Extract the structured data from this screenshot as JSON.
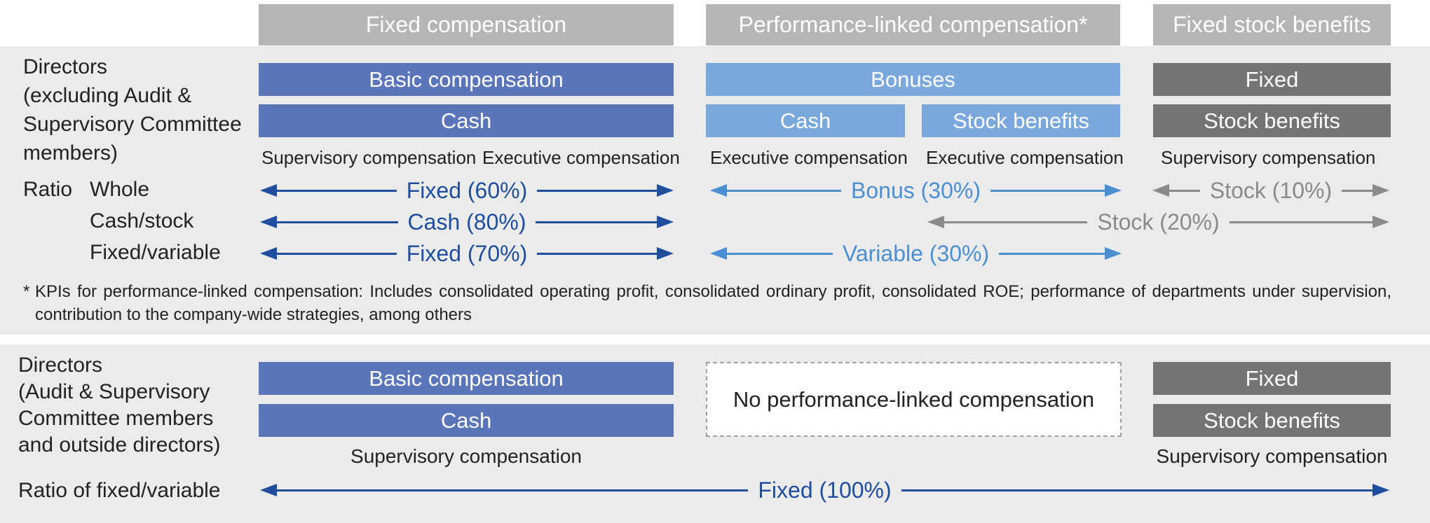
{
  "headers": {
    "fixed": "Fixed compensation",
    "performance": "Performance-linked compensation*",
    "stock": "Fixed stock benefits"
  },
  "section1": {
    "label": "Directors\n(excluding Audit &\nSupervisory Committee\nmembers)",
    "basic_compensation": "Basic compensation",
    "cash": "Cash",
    "bonuses": "Bonuses",
    "bonus_cash": "Cash",
    "bonus_stock": "Stock benefits",
    "fixed": "Fixed",
    "stock_benefits": "Stock benefits",
    "sub_supervisory": "Supervisory compensation",
    "sub_executive": "Executive compensation",
    "sub_bonus_cash": "Executive compensation",
    "sub_bonus_stock": "Executive compensation",
    "sub_stock": "Supervisory compensation",
    "ratio_label": "Ratio",
    "row_whole": "Whole",
    "row_cashstock": "Cash/stock",
    "row_fixedvar": "Fixed/variable",
    "arrow_fixed60": "Fixed (60%)",
    "arrow_bonus30": "Bonus (30%)",
    "arrow_stock10": "Stock (10%)",
    "arrow_cash80": "Cash (80%)",
    "arrow_stock20": "Stock (20%)",
    "arrow_fixed70": "Fixed (70%)",
    "arrow_variable30": "Variable (30%)",
    "footnote_mark": "*",
    "footnote": "KPIs for performance-linked compensation: Includes consolidated operating profit, consolidated ordinary profit, consolidated ROE; performance of departments under supervision, contribution to the company-wide strategies, among others"
  },
  "section2": {
    "label": "Directors\n(Audit & Supervisory\nCommittee members\nand outside directors)",
    "basic_compensation": "Basic compensation",
    "cash": "Cash",
    "no_performance": "No performance-linked compensation",
    "fixed": "Fixed",
    "stock_benefits": "Stock benefits",
    "sub_supervisory_left": "Supervisory compensation",
    "sub_supervisory_right": "Supervisory compensation",
    "ratio_label": "Ratio of fixed/variable",
    "arrow_fixed100": "Fixed (100%)"
  },
  "colors": {
    "basic_blue": "#5a75ba",
    "bonus_light_blue": "#7ba8dc",
    "stock_gray": "#747474",
    "header_gray": "#b5b5b6",
    "arrow_dark_blue": "#1f4e9e",
    "arrow_light_blue": "#4b8fd2",
    "arrow_gray": "#8a8a8a"
  }
}
